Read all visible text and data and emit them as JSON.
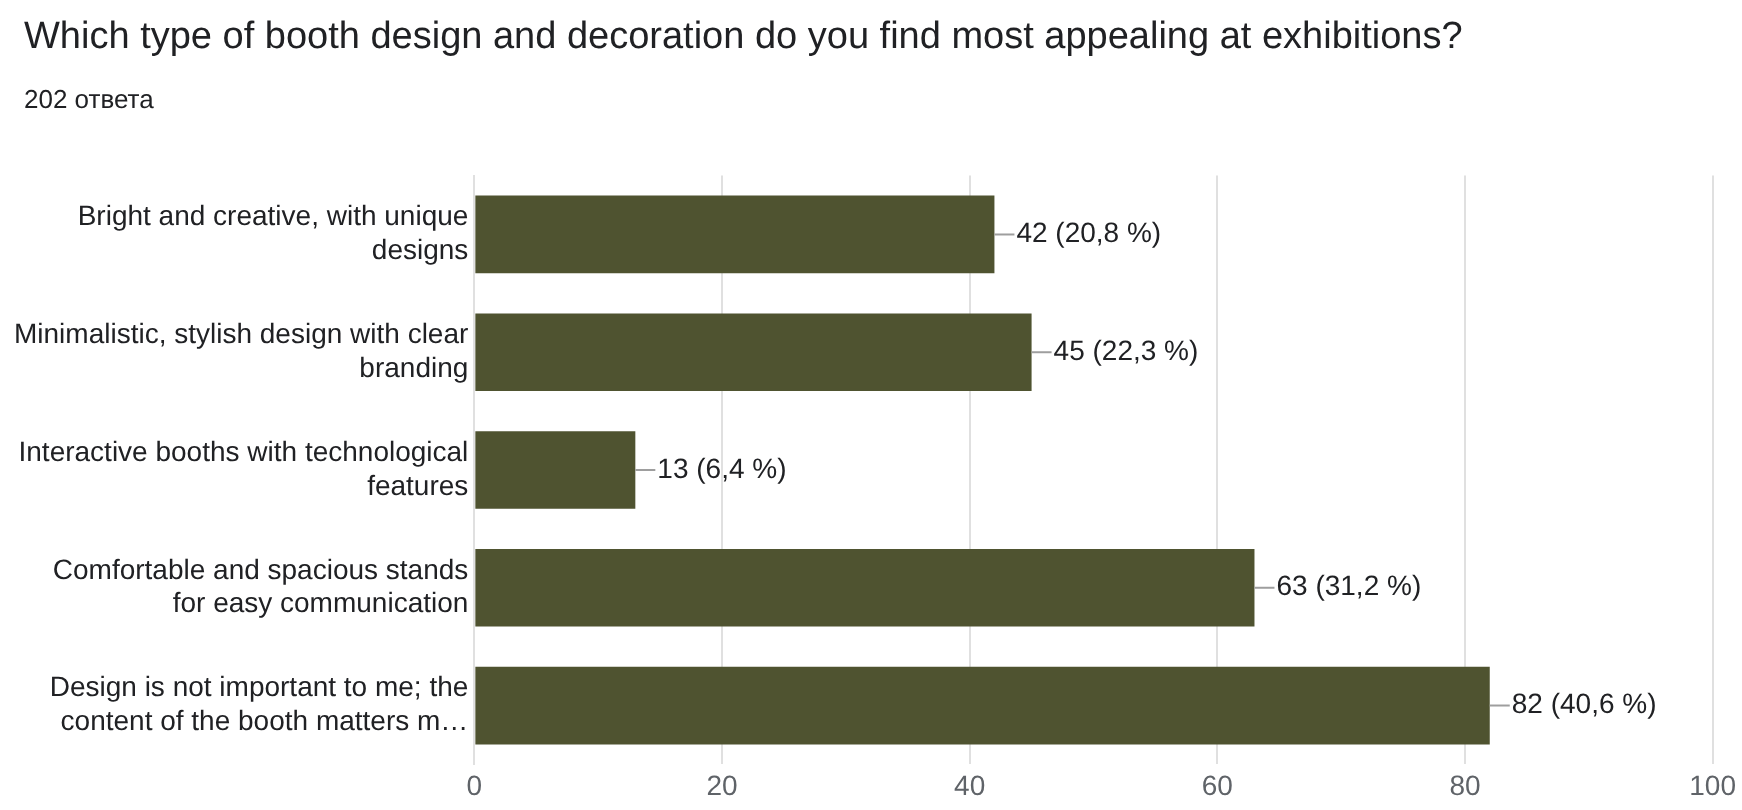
{
  "chart_data": {
    "type": "bar",
    "orientation": "horizontal",
    "title": "Which type of booth design and decoration do you find most appealing at exhibitions?",
    "subtitle": "202 ответа",
    "categories": [
      "Bright and creative, with unique designs",
      "Minimalistic, stylish design with clear branding",
      "Interactive booths with technological features",
      "Comfortable and spacious stands for easy communication",
      "Design is not important to me; the content of the booth matters m…"
    ],
    "values": [
      42,
      45,
      13,
      63,
      82
    ],
    "value_labels": [
      "42 (20,8 %)",
      "45 (22,3 %)",
      "13 (6,4 %)",
      "63 (31,2 %)",
      "82 (40,6 %)"
    ],
    "color": "#4f5330",
    "xlim": [
      0,
      100
    ],
    "xticks": [
      0,
      20,
      40,
      60,
      80,
      100
    ],
    "grid": "x",
    "legend": false
  }
}
